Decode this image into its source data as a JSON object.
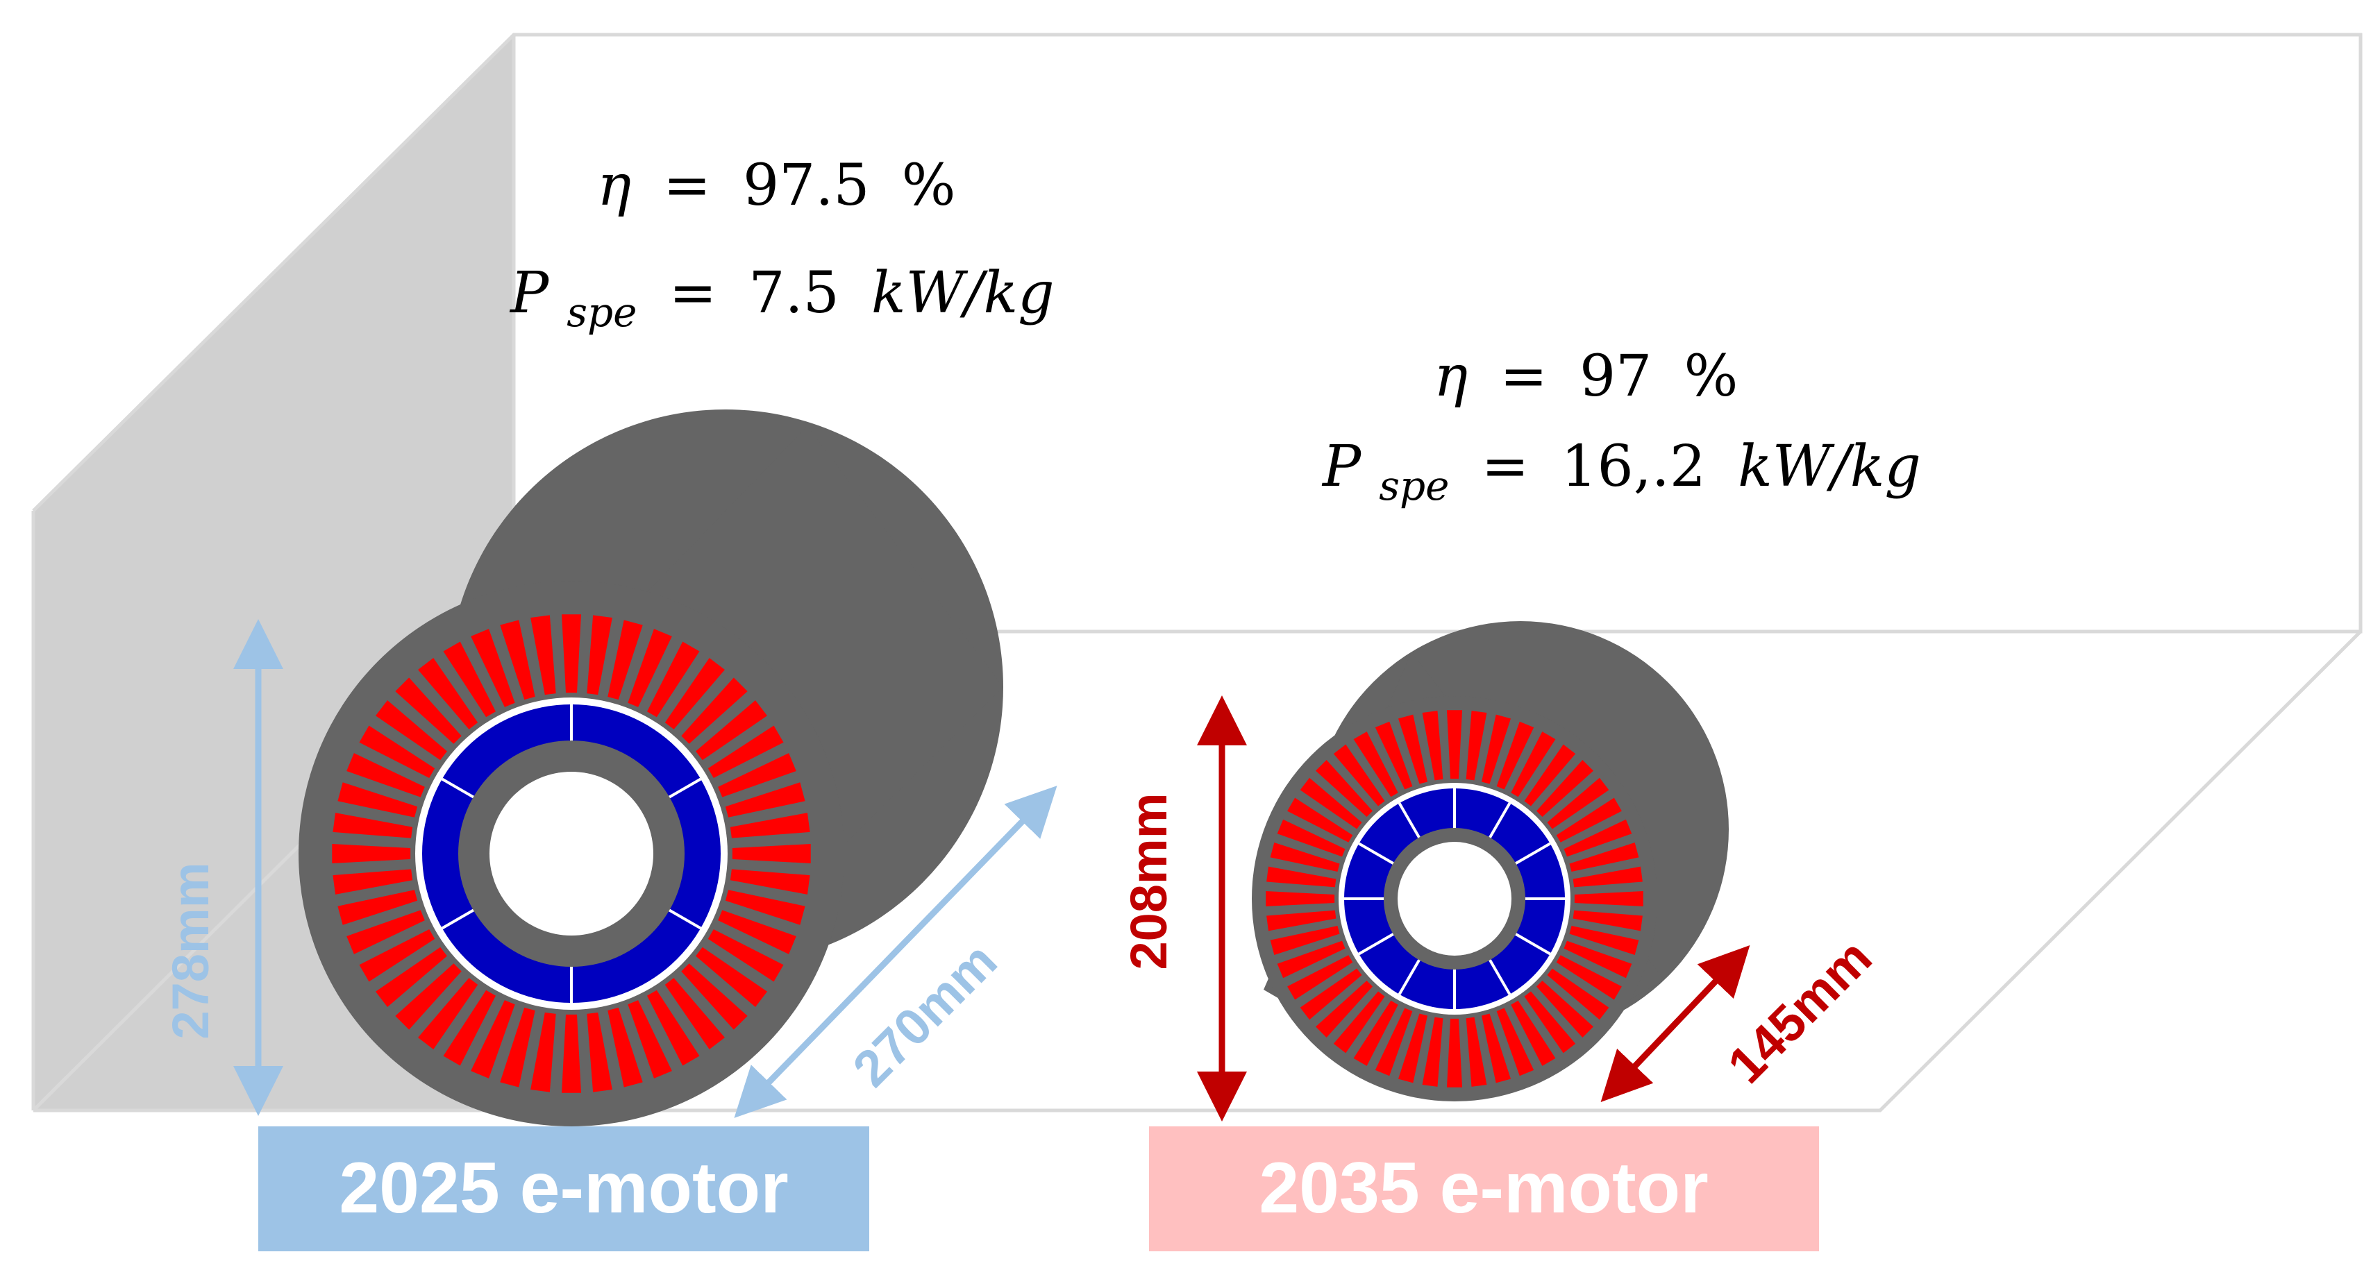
{
  "colors": {
    "box_outline": "#d9d9d9",
    "wall_fill": "#d0d0d0",
    "housing": "#656565",
    "stator_slot": "#ff0000",
    "rotor_magnet": "#0000bf",
    "dim_2025": "#9dc3e6",
    "dim_2035": "#c00000",
    "label_2025_bg": "#9dc3e6",
    "label_2035_bg": "#ffc0c0",
    "label_text": "#ffffff"
  },
  "motor_2025": {
    "efficiency": {
      "symbol": "η",
      "equals": "=",
      "value": "97.5",
      "unit": "%"
    },
    "specific_power": {
      "symbol": "P",
      "subscript": "spe",
      "equals": "=",
      "value": "7.5",
      "unit": "kW/kg"
    },
    "height_dimension": "278mm",
    "length_dimension": "270mm",
    "label": "2025 e-motor"
  },
  "motor_2035": {
    "efficiency": {
      "symbol": "η",
      "equals": "=",
      "value": "97",
      "unit": "%"
    },
    "specific_power": {
      "symbol": "P",
      "subscript": "spe",
      "equals": "=",
      "value": "16,.2",
      "unit": "kW/kg"
    },
    "height_dimension": "208mm",
    "length_dimension": "145mm",
    "label": "2035 e-motor"
  }
}
